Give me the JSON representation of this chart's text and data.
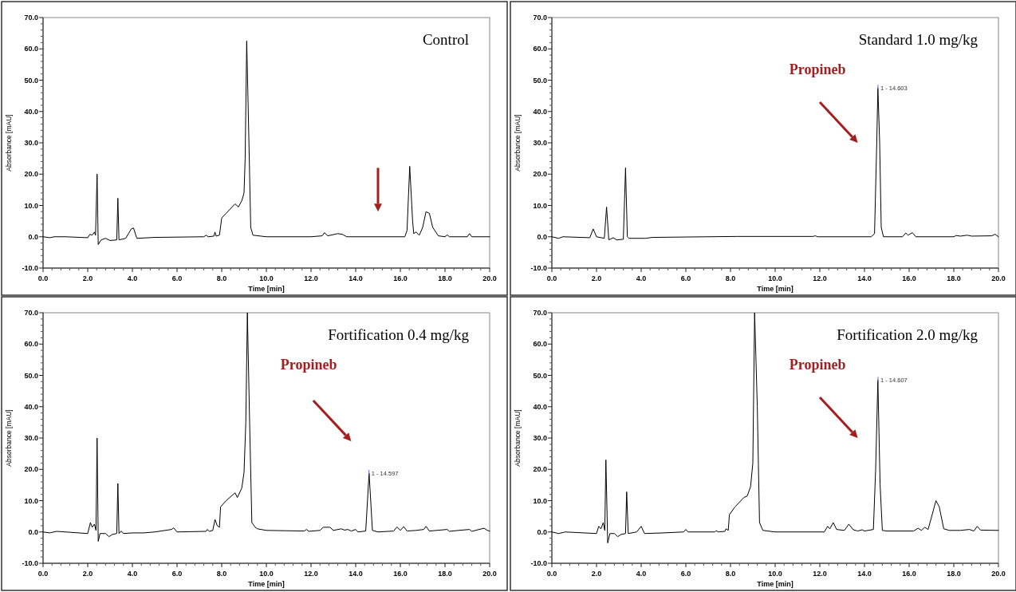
{
  "chart_data": [
    {
      "type": "line",
      "title": "Control",
      "xlabel": "Time [min]",
      "ylabel": "Absorbance [mAU]",
      "xlim": [
        0,
        20
      ],
      "ylim": [
        -10,
        70
      ],
      "xticks": [
        {
          "value": 0,
          "label": "0.0"
        },
        {
          "value": 2,
          "label": "2.0"
        },
        {
          "value": 4,
          "label": "4.0"
        },
        {
          "value": 6,
          "label": "6.0"
        },
        {
          "value": 8,
          "label": "8.0"
        },
        {
          "value": 10,
          "label": "10.0"
        },
        {
          "value": 12,
          "label": "12.0"
        },
        {
          "value": 14,
          "label": "14.0"
        },
        {
          "value": 16,
          "label": "16.0"
        },
        {
          "value": 18,
          "label": "18.0"
        },
        {
          "value": 20,
          "label": "20.0"
        }
      ],
      "yticks": [
        {
          "value": -10,
          "label": "-10.0"
        },
        {
          "value": 0,
          "label": "0.0"
        },
        {
          "value": 10,
          "label": "10.0"
        },
        {
          "value": 20,
          "label": "20.0"
        },
        {
          "value": 30,
          "label": "30.0"
        },
        {
          "value": 40,
          "label": "40.0"
        },
        {
          "value": 50,
          "label": "50.0"
        },
        {
          "value": 60,
          "label": "60.0"
        },
        {
          "value": 70,
          "label": "70.0"
        }
      ],
      "x": [
        0,
        0.3,
        0.5,
        1.0,
        2.0,
        2.1,
        2.2,
        2.3,
        2.35,
        2.42,
        2.47,
        2.6,
        2.8,
        3.0,
        3.3,
        3.35,
        3.4,
        3.7,
        3.95,
        4.05,
        4.2,
        5.0,
        7.2,
        7.3,
        7.4,
        7.65,
        7.7,
        7.75,
        7.9,
        8.0,
        8.2,
        8.6,
        8.75,
        8.9,
        9.0,
        9.05,
        9.12,
        9.22,
        9.3,
        9.4,
        10,
        12.0,
        12.5,
        12.6,
        12.75,
        13.2,
        13.4,
        13.6,
        15,
        16.2,
        16.3,
        16.42,
        16.55,
        16.6,
        16.7,
        16.85,
        17.0,
        17.15,
        17.3,
        17.45,
        17.7,
        18.0,
        18.1,
        18.2,
        19.0,
        19.1,
        19.2,
        20
      ],
      "series": [
        {
          "color": "#000000",
          "values": [
            0,
            -0.3,
            0,
            0,
            -0.3,
            0.8,
            0.5,
            1.5,
            0.5,
            20,
            -2.5,
            -1,
            -0.5,
            -1.2,
            -1,
            12.3,
            -1,
            -0.5,
            2.5,
            2.8,
            -0.5,
            -0.2,
            0,
            0.5,
            0,
            0.2,
            1.5,
            0.2,
            0.5,
            6,
            7.5,
            10.5,
            9.5,
            11.5,
            14,
            25,
            62.5,
            30,
            3,
            0.5,
            0,
            0,
            0.3,
            1.3,
            0.3,
            1,
            0.8,
            0,
            0,
            0,
            2,
            22.5,
            5,
            1,
            1.5,
            0.5,
            3,
            8,
            7.5,
            3,
            0.3,
            0,
            0.6,
            0,
            0,
            1,
            0,
            0
          ]
        }
      ]
    },
    {
      "type": "line",
      "title": "Standard 1.0 mg/kg",
      "xlabel": "Time [min]",
      "ylabel": "Absorbance [mAU]",
      "xlim": [
        0,
        20
      ],
      "ylim": [
        -10,
        70
      ],
      "xticks": [
        {
          "value": 0,
          "label": "0.0"
        },
        {
          "value": 2,
          "label": "2.0"
        },
        {
          "value": 4,
          "label": "4.0"
        },
        {
          "value": 6,
          "label": "6.0"
        },
        {
          "value": 8,
          "label": "8.0"
        },
        {
          "value": 10,
          "label": "10.0"
        },
        {
          "value": 12,
          "label": "12.0"
        },
        {
          "value": 14,
          "label": "14.0"
        },
        {
          "value": 16,
          "label": "16.0"
        },
        {
          "value": 18,
          "label": "18.0"
        },
        {
          "value": 20,
          "label": "20.0"
        }
      ],
      "yticks": [
        {
          "value": -10,
          "label": "-10.0"
        },
        {
          "value": 0,
          "label": "0.0"
        },
        {
          "value": 10,
          "label": "10.0"
        },
        {
          "value": 20,
          "label": "20.0"
        },
        {
          "value": 30,
          "label": "30.0"
        },
        {
          "value": 40,
          "label": "40.0"
        },
        {
          "value": 50,
          "label": "50.0"
        },
        {
          "value": 60,
          "label": "60.0"
        },
        {
          "value": 70,
          "label": "70.0"
        }
      ],
      "annotations": [
        "Propineb",
        {
          "text": "1 - 14.603",
          "x": 14.603,
          "y": 47.5
        }
      ],
      "x": [
        0,
        0.3,
        0.5,
        1.7,
        1.85,
        2.0,
        2.35,
        2.45,
        2.55,
        2.75,
        2.9,
        3.2,
        3.3,
        3.38,
        3.45,
        4.2,
        4.5,
        8.3,
        11.7,
        11.8,
        11.9,
        14.3,
        14.45,
        14.55,
        14.6,
        14.68,
        14.75,
        14.85,
        15.7,
        15.85,
        15.95,
        16.15,
        16.3,
        18,
        18.1,
        18.3,
        18.6,
        18.8,
        19.7,
        19.85,
        20
      ],
      "series": [
        {
          "color": "#000000",
          "values": [
            0,
            -0.5,
            0,
            -0.3,
            2.5,
            0,
            -0.5,
            9.5,
            -1,
            -0.3,
            -1,
            -0.8,
            22,
            0,
            -0.5,
            -0.5,
            -0.2,
            0.1,
            0.1,
            0.3,
            0,
            0,
            1,
            30,
            47.5,
            30,
            3,
            0,
            0,
            1.2,
            0.5,
            1.3,
            0,
            0,
            0.4,
            0.2,
            0.5,
            0.2,
            0.3,
            0.8,
            0
          ]
        }
      ]
    },
    {
      "type": "line",
      "title": "Fortification 0.4 mg/kg",
      "xlabel": "Time [min]",
      "ylabel": "Absorbance [mAU]",
      "xlim": [
        0,
        20
      ],
      "ylim": [
        -10,
        70
      ],
      "xticks": [
        {
          "value": 0,
          "label": "0.0"
        },
        {
          "value": 2,
          "label": "2.0"
        },
        {
          "value": 4,
          "label": "4.0"
        },
        {
          "value": 6,
          "label": "6.0"
        },
        {
          "value": 8,
          "label": "8.0"
        },
        {
          "value": 10,
          "label": "10.0"
        },
        {
          "value": 12,
          "label": "12.0"
        },
        {
          "value": 14,
          "label": "14.0"
        },
        {
          "value": 16,
          "label": "16.0"
        },
        {
          "value": 18,
          "label": "18.0"
        },
        {
          "value": 20,
          "label": "20.0"
        }
      ],
      "yticks": [
        {
          "value": -10,
          "label": "-10.0"
        },
        {
          "value": 0,
          "label": "0.0"
        },
        {
          "value": 10,
          "label": "10.0"
        },
        {
          "value": 20,
          "label": "20.0"
        },
        {
          "value": 30,
          "label": "30.0"
        },
        {
          "value": 40,
          "label": "40.0"
        },
        {
          "value": 50,
          "label": "50.0"
        },
        {
          "value": 60,
          "label": "60.0"
        },
        {
          "value": 70,
          "label": "70.0"
        }
      ],
      "annotations": [
        "Propineb",
        {
          "text": "1 - 14.597",
          "x": 14.597,
          "y": 18.8
        }
      ],
      "x": [
        0,
        0.3,
        0.6,
        2.0,
        2.12,
        2.2,
        2.3,
        2.37,
        2.42,
        2.47,
        2.55,
        2.8,
        2.95,
        3.1,
        3.3,
        3.35,
        3.4,
        3.5,
        3.6,
        4.0,
        4.5,
        5.0,
        5.75,
        5.85,
        6.0,
        7.3,
        7.35,
        7.45,
        7.6,
        7.7,
        7.8,
        7.9,
        7.95,
        8.2,
        8.6,
        8.7,
        8.9,
        9.0,
        9.08,
        9.15,
        9.25,
        9.35,
        9.5,
        9.6,
        10,
        11.7,
        11.8,
        11.9,
        12.4,
        12.55,
        12.85,
        13.0,
        13.35,
        13.5,
        13.65,
        13.8,
        14.0,
        14.1,
        14.45,
        14.6,
        14.75,
        15.0,
        15.7,
        15.85,
        16.0,
        16.15,
        16.3,
        16.7,
        17.05,
        17.15,
        17.3,
        18.1,
        18.2,
        18.6,
        19.1,
        19.2,
        19.75,
        19.9,
        20
      ],
      "series": [
        {
          "color": "#000000",
          "values": [
            0,
            -0.3,
            0.2,
            -0.5,
            3,
            1.5,
            2.5,
            0.5,
            30,
            -3,
            -0.5,
            -0.5,
            -1.5,
            -0.8,
            -0.5,
            15.5,
            -0.5,
            0.3,
            -0.5,
            -0.3,
            -0.3,
            0,
            0.8,
            1.3,
            0,
            0.2,
            0.8,
            0.2,
            0.5,
            4,
            2,
            1.5,
            8,
            10,
            12.5,
            11,
            14,
            19,
            35,
            70,
            35,
            3,
            1.5,
            1,
            0.5,
            0.3,
            0.8,
            0.2,
            0.5,
            1.5,
            1.5,
            0.5,
            1,
            0.6,
            0.8,
            0.3,
            0.8,
            0,
            0.3,
            18.8,
            0.5,
            0,
            0.3,
            1.6,
            0.5,
            1.7,
            0.3,
            0.5,
            0.8,
            1.8,
            0.3,
            0.8,
            0.2,
            0.5,
            0.8,
            0.2,
            1.2,
            0.5,
            0.3
          ]
        }
      ]
    },
    {
      "type": "line",
      "title": "Fortification 2.0 mg/kg",
      "xlabel": "Time [min]",
      "ylabel": "Absorbance [mAU]",
      "xlim": [
        0,
        20
      ],
      "ylim": [
        -10,
        70
      ],
      "xticks": [
        {
          "value": 0,
          "label": "0.0"
        },
        {
          "value": 2,
          "label": "2.0"
        },
        {
          "value": 4,
          "label": "4.0"
        },
        {
          "value": 6,
          "label": "6.0"
        },
        {
          "value": 8,
          "label": "8.0"
        },
        {
          "value": 10,
          "label": "10.0"
        },
        {
          "value": 12,
          "label": "12.0"
        },
        {
          "value": 14,
          "label": "14.0"
        },
        {
          "value": 16,
          "label": "16.0"
        },
        {
          "value": 18,
          "label": "18.0"
        },
        {
          "value": 20,
          "label": "20.0"
        }
      ],
      "yticks": [
        {
          "value": -10,
          "label": "-10.0"
        },
        {
          "value": 0,
          "label": "0.0"
        },
        {
          "value": 10,
          "label": "10.0"
        },
        {
          "value": 20,
          "label": "20.0"
        },
        {
          "value": 30,
          "label": "30.0"
        },
        {
          "value": 40,
          "label": "40.0"
        },
        {
          "value": 50,
          "label": "50.0"
        },
        {
          "value": 60,
          "label": "60.0"
        },
        {
          "value": 70,
          "label": "70.0"
        }
      ],
      "annotations": [
        "Propineb",
        {
          "text": "1 - 14.607",
          "x": 14.607,
          "y": 48.5
        }
      ],
      "x": [
        0,
        0.3,
        0.6,
        2.0,
        2.1,
        2.2,
        2.3,
        2.37,
        2.42,
        2.5,
        2.6,
        2.8,
        2.95,
        3.1,
        3.3,
        3.35,
        3.42,
        3.8,
        4.0,
        4.15,
        5.0,
        5.9,
        6.0,
        6.1,
        7.3,
        7.35,
        7.45,
        7.75,
        7.8,
        7.9,
        7.95,
        8.2,
        8.6,
        8.75,
        8.9,
        9.0,
        9.08,
        9.2,
        9.3,
        9.45,
        10,
        12.2,
        12.35,
        12.45,
        12.6,
        12.75,
        13.1,
        13.3,
        13.5,
        13.7,
        13.9,
        14.0,
        14.4,
        14.5,
        14.6,
        14.7,
        14.8,
        15.0,
        16.2,
        16.4,
        16.55,
        16.7,
        16.85,
        17.05,
        17.2,
        17.35,
        17.55,
        17.8,
        18.3,
        18.7,
        18.9,
        19.05,
        19.2,
        20
      ],
      "series": [
        {
          "color": "#000000",
          "values": [
            0,
            -0.5,
            0,
            -0.5,
            1.8,
            1,
            3,
            0.5,
            23,
            -3.5,
            -0.5,
            -0.5,
            -1.5,
            -0.8,
            -0.5,
            12.8,
            -0.5,
            0,
            1.8,
            -0.5,
            -0.3,
            0,
            0.8,
            0,
            0,
            0.4,
            0,
            0.2,
            1,
            0.5,
            5.5,
            8,
            11,
            11.5,
            14.5,
            22,
            70,
            40,
            3,
            0.5,
            0,
            0,
            1.8,
            1,
            3,
            0.8,
            0.5,
            2.5,
            0.7,
            0.3,
            0.7,
            0.3,
            0.8,
            20,
            48.5,
            15,
            0.5,
            0.3,
            0.3,
            1.2,
            0.5,
            1.5,
            0.8,
            6,
            10,
            8,
            1,
            0.5,
            0.5,
            0.8,
            0.3,
            1.8,
            0.6,
            0.5
          ]
        }
      ]
    }
  ]
}
